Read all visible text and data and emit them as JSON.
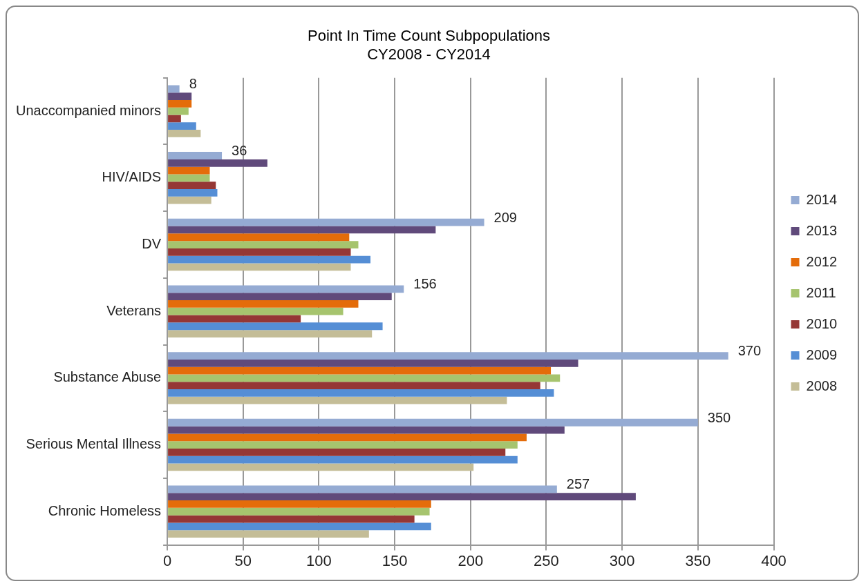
{
  "chart_data": {
    "type": "bar",
    "orientation": "horizontal",
    "title": "Point In Time Count Subpopulations",
    "subtitle": "CY2008 - CY2014",
    "categories": [
      "Unaccompanied minors",
      "HIV/AIDS",
      "DV",
      "Veterans",
      "Substance Abuse",
      "Serious Mental Illness",
      "Chronic Homeless"
    ],
    "series": [
      {
        "name": "2014",
        "color": "#95abd3",
        "values": [
          8,
          36,
          209,
          156,
          370,
          350,
          257
        ],
        "value_labels": [
          "8",
          "36",
          "209",
          "156",
          "370",
          "350",
          "257"
        ]
      },
      {
        "name": "2013",
        "color": "#604a7b",
        "values": [
          16,
          66,
          177,
          148,
          271,
          262,
          309
        ]
      },
      {
        "name": "2012",
        "color": "#e46c0a",
        "values": [
          16,
          28,
          120,
          126,
          253,
          237,
          174
        ]
      },
      {
        "name": "2011",
        "color": "#a6c46e",
        "values": [
          14,
          28,
          126,
          116,
          259,
          231,
          173
        ]
      },
      {
        "name": "2010",
        "color": "#953735",
        "values": [
          9,
          32,
          121,
          88,
          246,
          223,
          163
        ]
      },
      {
        "name": "2009",
        "color": "#558ed5",
        "values": [
          19,
          33,
          134,
          142,
          255,
          231,
          174
        ]
      },
      {
        "name": "2008",
        "color": "#c4bd97",
        "values": [
          22,
          29,
          121,
          135,
          224,
          202,
          133
        ]
      }
    ],
    "xlim": [
      0,
      400
    ],
    "xticks": [
      0,
      50,
      100,
      150,
      200,
      250,
      300,
      350,
      400
    ],
    "grid": "x",
    "legend": "right"
  }
}
